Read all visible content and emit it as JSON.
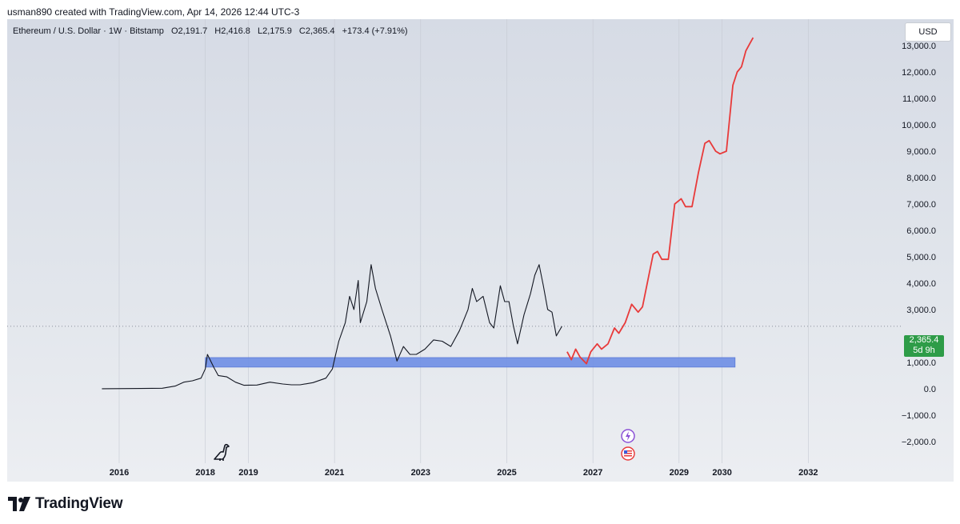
{
  "header": {
    "caption": "usman890 created with TradingView.com, Apr 14, 2026 12:44 UTC-3"
  },
  "legend": {
    "symbol": "Ethereum / U.S. Dollar · 1W · Bitstamp",
    "open": "O2,191.7",
    "high": "H2,416.8",
    "low": "L2,175.9",
    "close": "C2,365.4",
    "change": "+173.4 (+7.91%)"
  },
  "currency_button": "USD",
  "last_price": {
    "value": "2,365.4",
    "countdown": "5d 9h"
  },
  "footer": {
    "brand": "TradingView"
  },
  "colors": {
    "price": "#131722",
    "projection": "#e83a3a",
    "zone": "#6f8fe6",
    "last": "#2e9c48"
  },
  "chart_data": {
    "type": "line",
    "title": "Ethereum / U.S. Dollar · 1W · Bitstamp",
    "x_unit": "year",
    "xlim": [
      2013.4,
      2034.0
    ],
    "ylim": [
      -2700,
      14000
    ],
    "y_ticks": [
      "13,000.0",
      "12,000.0",
      "11,000.0",
      "10,000.0",
      "9,000.0",
      "8,000.0",
      "7,000.0",
      "6,000.0",
      "5,000.0",
      "4,000.0",
      "3,000.0",
      "1,000.0",
      "0.0",
      "−1,000.0",
      "−2,000.0"
    ],
    "y_tick_values": [
      13000,
      12000,
      11000,
      10000,
      9000,
      8000,
      7000,
      6000,
      5000,
      4000,
      3000,
      1000,
      0,
      -1000,
      -2000
    ],
    "x_ticks": [
      "2016",
      "2018",
      "2019",
      "2021",
      "2023",
      "2025",
      "2027",
      "2029",
      "2030",
      "2032"
    ],
    "x_tick_values": [
      2016,
      2018,
      2019,
      2021,
      2023,
      2025,
      2027,
      2029,
      2030,
      2032
    ],
    "last_value": 2365.4,
    "support_zone": {
      "x_start": 2018.0,
      "x_end": 2030.3,
      "y_low": 820,
      "y_high": 1180
    },
    "series": [
      {
        "name": "ETH/USD weekly",
        "x": [
          2015.6,
          2016.5,
          2017.0,
          2017.3,
          2017.5,
          2017.7,
          2017.9,
          2018.0,
          2018.05,
          2018.2,
          2018.3,
          2018.5,
          2018.7,
          2018.9,
          2019.2,
          2019.5,
          2019.8,
          2020.0,
          2020.2,
          2020.5,
          2020.8,
          2020.95,
          2021.0,
          2021.1,
          2021.25,
          2021.35,
          2021.45,
          2021.55,
          2021.6,
          2021.75,
          2021.85,
          2021.95,
          2022.1,
          2022.3,
          2022.45,
          2022.6,
          2022.75,
          2022.9,
          2023.1,
          2023.3,
          2023.5,
          2023.7,
          2023.9,
          2024.1,
          2024.2,
          2024.3,
          2024.45,
          2024.6,
          2024.7,
          2024.85,
          2024.95,
          2025.05,
          2025.15,
          2025.25,
          2025.4,
          2025.55,
          2025.65,
          2025.75,
          2025.85,
          2025.95,
          2026.05,
          2026.15,
          2026.28
        ],
        "y": [
          0,
          10,
          20,
          100,
          250,
          300,
          400,
          750,
          1300,
          800,
          500,
          450,
          250,
          130,
          140,
          250,
          180,
          150,
          150,
          230,
          400,
          750,
          1100,
          1800,
          2500,
          3500,
          3000,
          4100,
          2500,
          3300,
          4700,
          3800,
          3000,
          2000,
          1050,
          1600,
          1300,
          1300,
          1500,
          1850,
          1800,
          1600,
          2200,
          3000,
          3800,
          3300,
          3500,
          2500,
          2300,
          3900,
          3300,
          3300,
          2400,
          1700,
          2800,
          3600,
          4300,
          4700,
          3900,
          3000,
          2900,
          2000,
          2365
        ]
      },
      {
        "name": "Projection",
        "x": [
          2026.4,
          2026.5,
          2026.6,
          2026.7,
          2026.85,
          2026.95,
          2027.1,
          2027.2,
          2027.35,
          2027.5,
          2027.6,
          2027.75,
          2027.9,
          2028.05,
          2028.15,
          2028.3,
          2028.4,
          2028.5,
          2028.6,
          2028.75,
          2028.9,
          2029.05,
          2029.15,
          2029.3,
          2029.45,
          2029.6,
          2029.7,
          2029.85,
          2029.95,
          2030.1,
          2030.25,
          2030.35,
          2030.45,
          2030.55,
          2030.65,
          2030.72
        ],
        "y": [
          1400,
          1100,
          1500,
          1200,
          950,
          1400,
          1700,
          1500,
          1700,
          2300,
          2100,
          2500,
          3200,
          2900,
          3100,
          4300,
          5100,
          5200,
          4900,
          4900,
          7000,
          7200,
          6900,
          6900,
          8200,
          9300,
          9400,
          9000,
          8900,
          9000,
          11500,
          12000,
          12200,
          12800,
          13100,
          13300
        ]
      }
    ]
  }
}
